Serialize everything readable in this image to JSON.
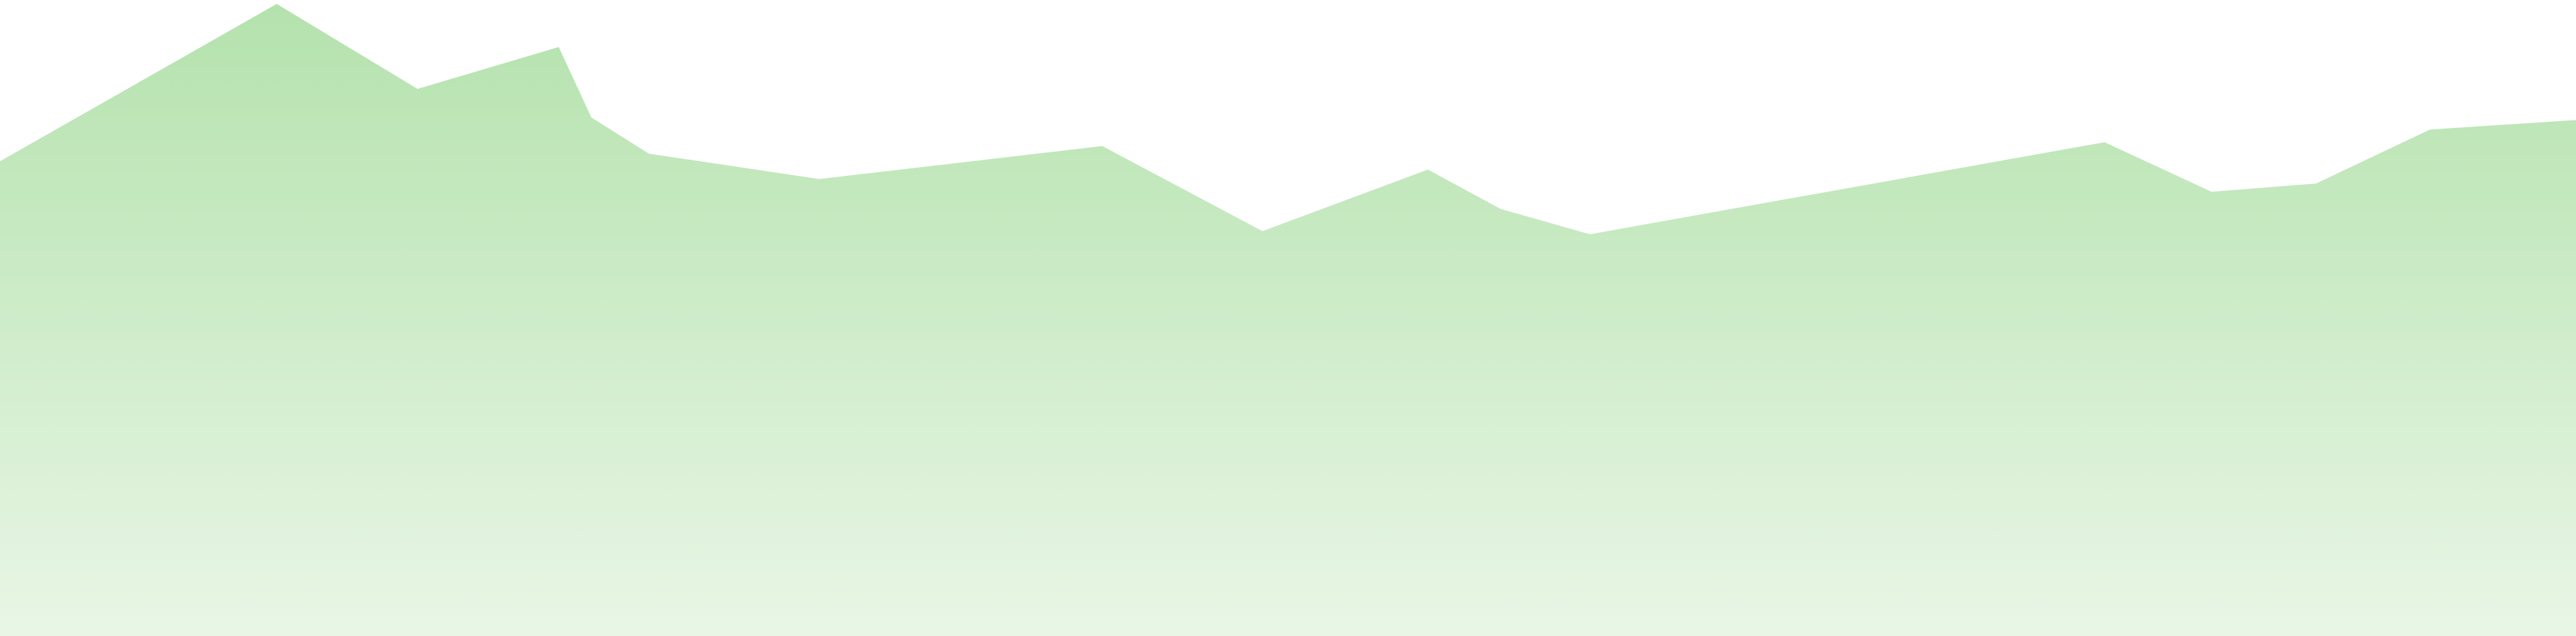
{
  "chart_data": {
    "type": "area",
    "title": "",
    "xlabel": "",
    "ylabel": "",
    "grid": false,
    "legend": "none",
    "fill_top_color": "#b4e2ad",
    "fill_bottom_color": "#e9f6e6",
    "ylim": [
      0,
      1
    ],
    "series": [
      {
        "points": [
          {
            "x": 0.0,
            "y": 0.748
          },
          {
            "x": 0.1074,
            "y": 0.996
          },
          {
            "x": 0.1621,
            "y": 0.862
          },
          {
            "x": 0.2169,
            "y": 0.928
          },
          {
            "x": 0.2296,
            "y": 0.817
          },
          {
            "x": 0.2519,
            "y": 0.76
          },
          {
            "x": 0.318,
            "y": 0.72
          },
          {
            "x": 0.4279,
            "y": 0.772
          },
          {
            "x": 0.4901,
            "y": 0.638
          },
          {
            "x": 0.5543,
            "y": 0.735
          },
          {
            "x": 0.5825,
            "y": 0.673
          },
          {
            "x": 0.6172,
            "y": 0.633
          },
          {
            "x": 0.817,
            "y": 0.778
          },
          {
            "x": 0.8585,
            "y": 0.7
          },
          {
            "x": 0.8991,
            "y": 0.713
          },
          {
            "x": 0.9433,
            "y": 0.798
          },
          {
            "x": 1.0,
            "y": 0.813
          }
        ]
      }
    ]
  }
}
